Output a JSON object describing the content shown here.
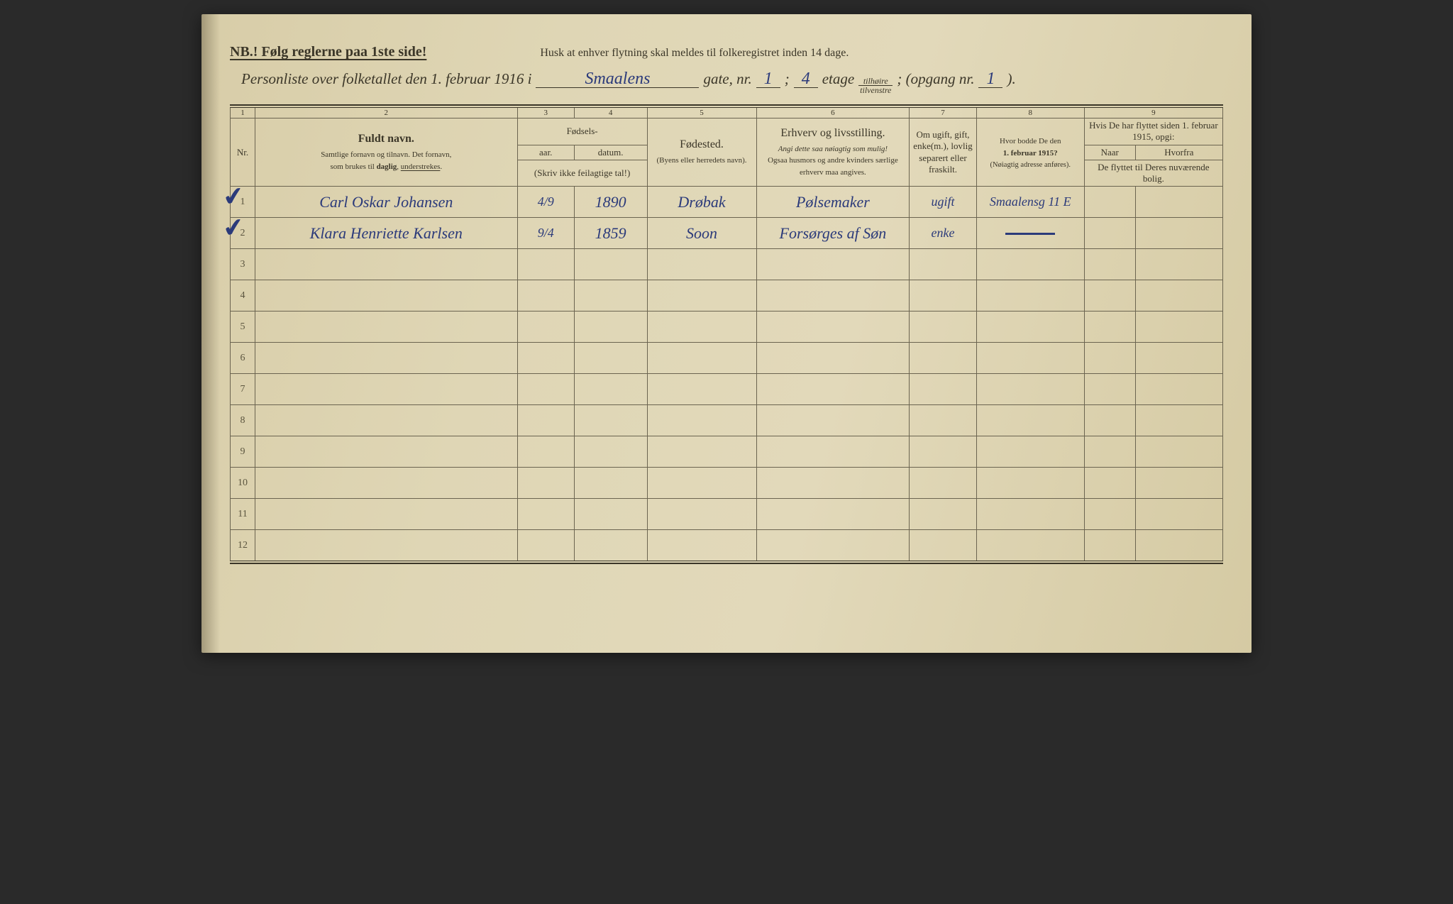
{
  "colors": {
    "paper_bg": "#dfd6b5",
    "ink_print": "#3b3628",
    "ink_handwriting": "#2b3a7a",
    "rule_line": "#6b6450"
  },
  "typography": {
    "print_family": "Times New Roman",
    "print_size_header_pt": 15,
    "print_size_sub_pt": 11,
    "handwriting_family": "Brush Script MT",
    "handwriting_size_pt": 22
  },
  "header": {
    "nb": "NB.! Følg reglerne paa 1ste side!",
    "reminder": "Husk at enhver flytning skal meldes til folkeregistret inden 14 dage.",
    "title_prefix": "Personliste over folketallet den 1. februar 1916 i",
    "street": "Smaalens",
    "gate_label": "gate, nr.",
    "gate_nr": "1",
    "sep": ";",
    "etage_nr": "4",
    "etage_label": "etage",
    "side_top": "tilhøire",
    "side_bot": "tilvenstre",
    "opgang_label": "; (opgang nr.",
    "opgang_nr": "1",
    "close": ")."
  },
  "columns": {
    "nums": [
      "1",
      "2",
      "3",
      "4",
      "5",
      "6",
      "7",
      "8",
      "9"
    ],
    "c1": "Nr.",
    "c2_title": "Fuldt navn.",
    "c2_sub1": "Samtlige fornavn og tilnavn.  Det fornavn,",
    "c2_sub2": "som brukes til daglig, understrekes.",
    "c34_title": "Fødsels-",
    "c3": "aar.",
    "c4": "datum.",
    "c34_note": "(Skriv ikke feilagtige tal!)",
    "c5_title": "Fødested.",
    "c5_sub": "(Byens eller herredets navn).",
    "c6_title": "Erhverv og livsstilling.",
    "c6_sub1": "Angi dette saa nøiagtig som mulig!",
    "c6_sub2": "Ogsaa husmors og andre kvinders særlige erhverv maa angives.",
    "c7": "Om ugift, gift, enke(m.), lovlig separert eller fraskilt.",
    "c8_title": "Hvor bodde De den",
    "c8_date": "1. februar 1915?",
    "c8_sub": "(Nøiagtig adresse anføres).",
    "c9_title": "Hvis De har flyttet siden 1. februar 1915, opgi:",
    "c9a": "Naar",
    "c9b": "Hvorfra",
    "c9_sub": "De flyttet til Deres nuværende bolig."
  },
  "row_count": 12,
  "entries": [
    {
      "nr": "1",
      "name": "Carl Oskar Johansen",
      "year": "4/9",
      "date": "1890",
      "birthplace": "Drøbak",
      "occupation": "Pølsemaker",
      "status": "ugift",
      "addr1915": "Smaalensg 11 E",
      "moved_when": "",
      "moved_from": ""
    },
    {
      "nr": "2",
      "name": "Klara Henriette Karlsen",
      "year": "9/4",
      "date": "1859",
      "birthplace": "Soon",
      "occupation": "Forsørges af Søn",
      "status": "enke",
      "addr1915": "—",
      "moved_when": "",
      "moved_from": ""
    }
  ]
}
